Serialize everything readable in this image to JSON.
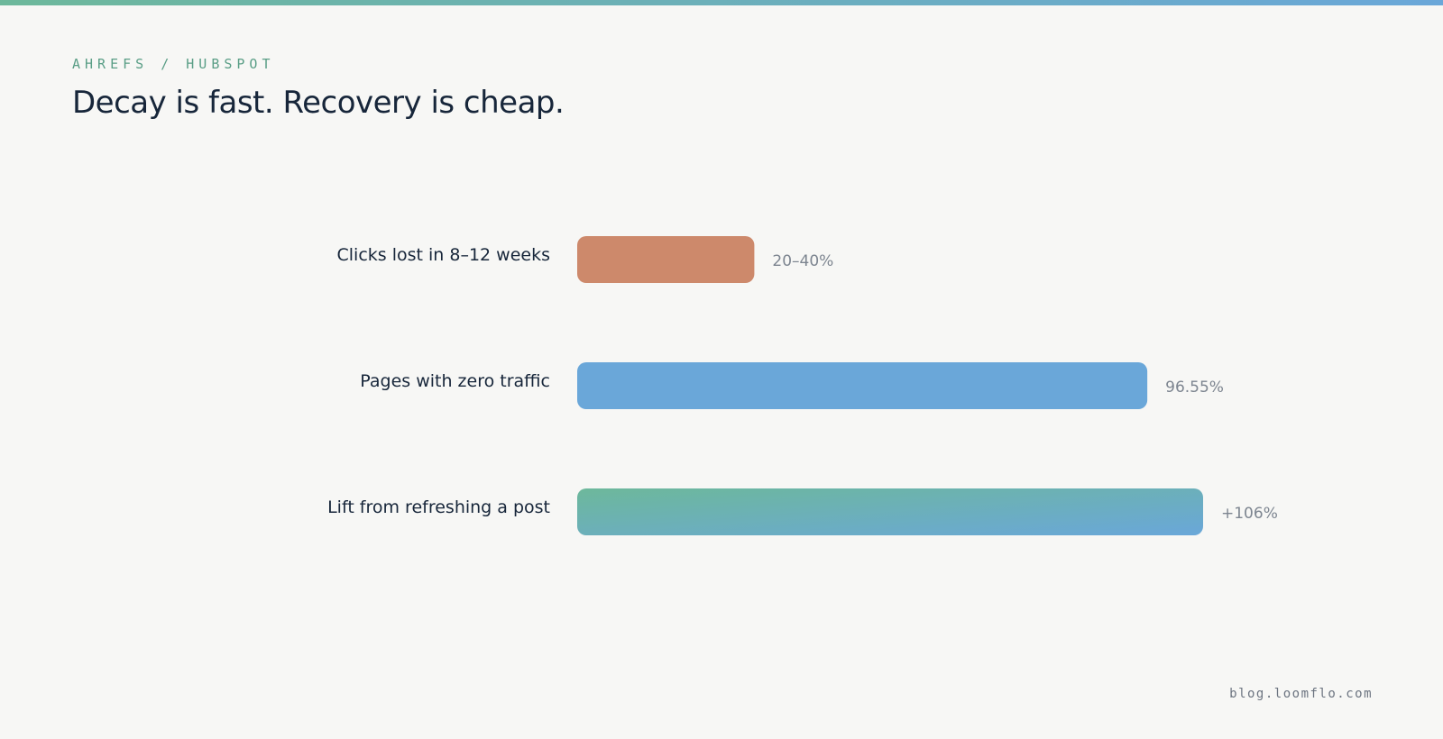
{
  "header": {
    "eyebrow": "AHREFS / HUBSPOT",
    "title": "Decay is fast. Recovery is cheap."
  },
  "footer": {
    "url": "blog.loomflo.com"
  },
  "colors": {
    "background": "#f7f7f5",
    "accent_teal": "#6db89b",
    "accent_blue": "#6aa7d9",
    "decay": "#cd896b",
    "title": "#17263a",
    "eyebrow": "#5a9e86",
    "value_label": "#7d8590"
  },
  "chart_data": {
    "type": "bar",
    "orientation": "horizontal",
    "categories": [
      "Clicks lost in 8–12 weeks",
      "Pages with zero traffic",
      "Lift from refreshing a post"
    ],
    "values": [
      30,
      96.55,
      106
    ],
    "value_labels": [
      "20–40%",
      "96.55%",
      "+106%"
    ],
    "range_low_high": [
      [
        20,
        40
      ],
      null,
      null
    ],
    "bar_colors": [
      "#cd896b",
      "#6aa7d9",
      "gradient:#6db89b-#6aa7d9"
    ],
    "xlim": [
      0,
      106
    ],
    "grid": false,
    "legend": "none"
  }
}
